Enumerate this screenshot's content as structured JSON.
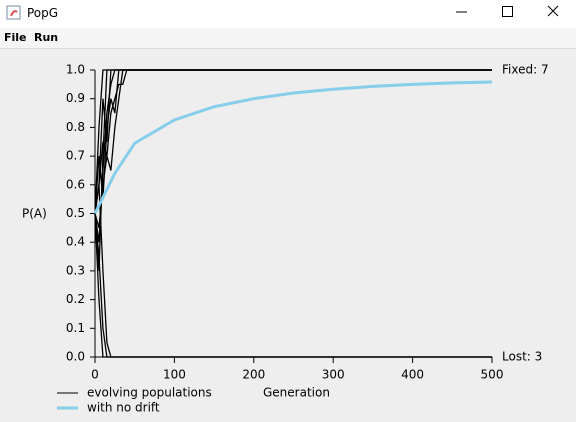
{
  "window": {
    "title": "PopG"
  },
  "menu": [
    "File",
    "Run"
  ],
  "chart_data": {
    "type": "line",
    "x_label": "Generation",
    "y_label": "P(A)",
    "fixed_label": "Fixed: 7",
    "lost_label": "Lost: 3",
    "xlim": [
      0,
      500
    ],
    "ylim": [
      0,
      1
    ],
    "xticks": [
      0,
      100,
      200,
      300,
      400,
      500
    ],
    "yticks": [
      {
        "value": 0,
        "label": "0.0"
      },
      0.1,
      0.2,
      0.3,
      0.4,
      0.5,
      0.6,
      0.7,
      0.8,
      0.9,
      {
        "value": 1,
        "label": "1.0"
      }
    ],
    "x": [
      0,
      5,
      10,
      15,
      20,
      25,
      30,
      35,
      40,
      500
    ],
    "series": [
      {
        "name": "evolving populations",
        "color": "#000000",
        "runs": [
          {
            "values": [
              0.5,
              0.8,
              1,
              1,
              1,
              1,
              1,
              1,
              1,
              1
            ]
          },
          {
            "values": [
              0.5,
              0.3,
              0.7,
              1,
              1,
              1,
              1,
              1,
              1,
              1
            ]
          },
          {
            "values": [
              0.5,
              0.6,
              0.9,
              0.75,
              1,
              1,
              1,
              1,
              1,
              1
            ]
          },
          {
            "values": [
              0.5,
              0.4,
              0.65,
              0.85,
              0.95,
              1,
              1,
              1,
              1,
              1
            ]
          },
          {
            "values": [
              0.5,
              0.7,
              0.55,
              0.8,
              0.9,
              0.85,
              1,
              1,
              1,
              1
            ]
          },
          {
            "values": [
              0.5,
              0.45,
              0.6,
              0.7,
              0.65,
              0.8,
              0.9,
              1,
              1,
              1
            ]
          },
          {
            "values": [
              0.5,
              0.6,
              0.75,
              0.7,
              0.85,
              0.9,
              0.95,
              0.95,
              1,
              1
            ]
          },
          {
            "values": [
              0.5,
              0.2,
              0,
              0,
              0,
              0,
              0,
              0,
              0,
              0
            ]
          },
          {
            "values": [
              0.5,
              0.35,
              0.1,
              0,
              0,
              0,
              0,
              0,
              0,
              0
            ]
          },
          {
            "values": [
              0.5,
              0.6,
              0.3,
              0.05,
              0,
              0,
              0,
              0,
              0,
              0
            ]
          }
        ]
      },
      {
        "name": "with no drift",
        "color": "#87ceeb",
        "x": [
          0,
          25,
          50,
          100,
          150,
          200,
          250,
          300,
          350,
          400,
          450,
          500
        ],
        "values": [
          0.5,
          0.64,
          0.745,
          0.826,
          0.872,
          0.9,
          0.92,
          0.933,
          0.943,
          0.95,
          0.955,
          0.958
        ]
      }
    ]
  }
}
